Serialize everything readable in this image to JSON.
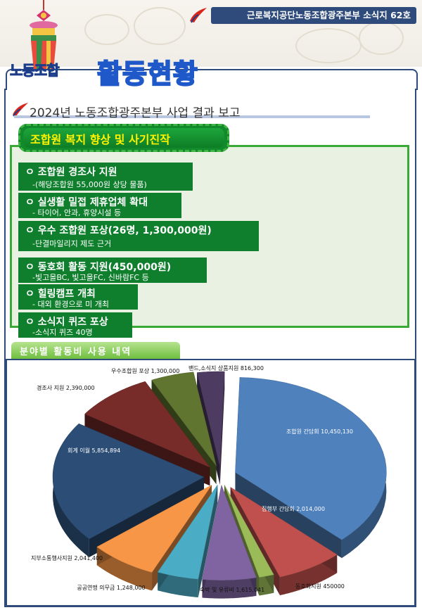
{
  "header": {
    "newsletter": "근로복지공단노동조합광주본부 소식지 62호",
    "title_prefix": "노동조합",
    "title_main": "활동현황"
  },
  "report": {
    "heading": "2024년 노동조합광주본부 사업 결과 보고"
  },
  "welfare_section": {
    "title": "조합원 복지 향상 및 사기진작",
    "items": [
      {
        "head": "ㅇ 조합원 경조사 지원",
        "sub": "-(해당조합원 55,000원 상당 물품)"
      },
      {
        "head": "ㅇ 실생활 밀접 제휴업체 확대",
        "sub": "- 타이어, 안과, 휴양시설 등"
      },
      {
        "head": "ㅇ 우수 조합원 포상(26명, 1,300,000원)",
        "sub": "-단결마일리지 제도 근거"
      },
      {
        "head": "ㅇ 동호회 활동 지원(450,000원)",
        "sub": "-빛고을BC, 빛고을FC, 신바람FC 등"
      },
      {
        "head": "ㅇ 힐링캠프 개최",
        "sub": "- 대외 환경으로 미 개최"
      },
      {
        "head": "ㅇ 소식지 퀴즈 포상",
        "sub": "-소식지 퀴즈 40명"
      }
    ]
  },
  "chart_section": {
    "title": "분야별 활동비 사용 내역"
  },
  "chart_data": {
    "type": "pie",
    "categories": [
      "조합원 간담회",
      "집행부 간담회",
      "동호회지원",
      "숙박 및 유류비",
      "공공연맹 의무금",
      "지부소통행사지원",
      "회계 이월",
      "경조사 지원",
      "우수조합원 포상",
      "밴드,소식지 상품지원"
    ],
    "values": [
      10450130,
      2014000,
      450000,
      1615041,
      1248000,
      2041400,
      5854894,
      2390000,
      1300000,
      816300
    ],
    "value_labels": [
      "10,450,130",
      "2,014,000",
      "450000",
      "1,615,041",
      "1,248,000",
      "2,041,400",
      "5,854,894",
      "2,390,000",
      "1,300,000",
      "816,300"
    ],
    "colors": [
      "#4f81bd",
      "#c0504d",
      "#9bbb59",
      "#8064a2",
      "#4bacc6",
      "#f79646",
      "#2c4d75",
      "#772c2a",
      "#5f7530",
      "#4d3b62"
    ],
    "style": "3d exploded"
  }
}
